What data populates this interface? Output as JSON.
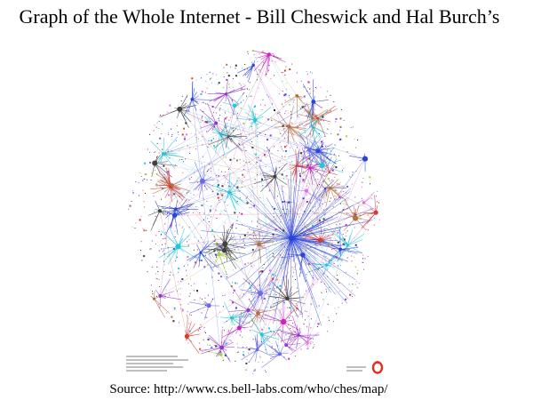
{
  "slide": {
    "title": "Graph of the Whole Internet - Bill Cheswick and Hal Burch’s",
    "source": "Source: http://www.cs.bell-labs.com/who/ches/map/"
  },
  "map": {
    "palette": [
      "#d020c0",
      "#9a30d0",
      "#2a44d8",
      "#20c8d8",
      "#a8d040",
      "#d83a30",
      "#404040",
      "#e070e0",
      "#6a6ae8",
      "#b07040"
    ],
    "hub_color": "#2a44d8",
    "logo_color": "#e03020"
  }
}
